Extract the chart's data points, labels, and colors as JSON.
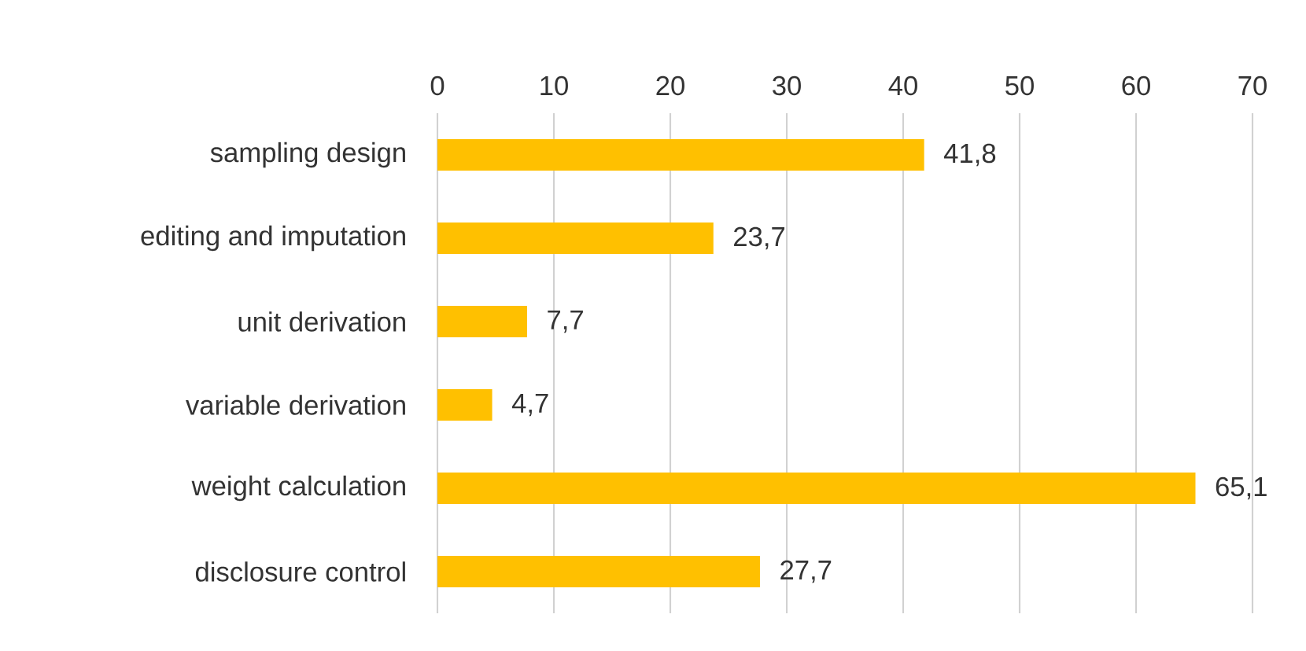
{
  "chart_data": {
    "type": "bar",
    "orientation": "horizontal",
    "categories": [
      "sampling design",
      "editing and imputation",
      "unit derivation",
      "variable derivation",
      "weight calculation",
      "disclosure control"
    ],
    "values": [
      41.8,
      23.7,
      7.7,
      4.7,
      65.1,
      27.7
    ],
    "value_labels": [
      "41,8",
      "23,7",
      "7,7",
      "4,7",
      "65,1",
      "27,7"
    ],
    "color": "#ffc000",
    "xlim": [
      0,
      70
    ],
    "xticks": [
      0,
      10,
      20,
      30,
      40,
      50,
      60,
      70
    ],
    "grid": "x"
  }
}
